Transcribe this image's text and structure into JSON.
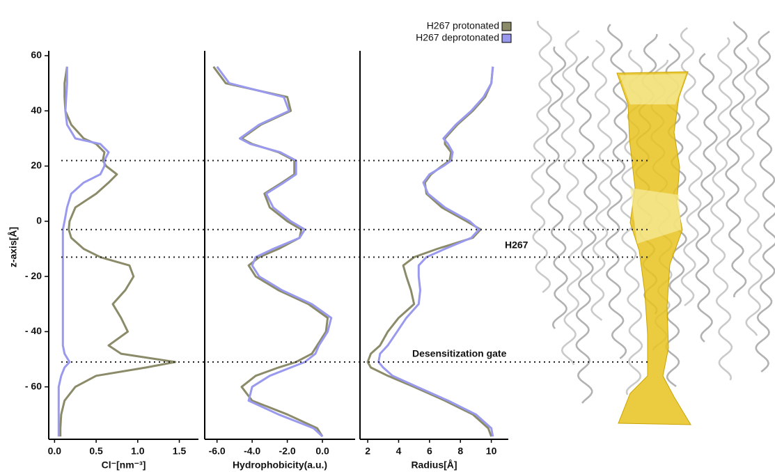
{
  "chart_data": [
    {
      "type": "line",
      "xlabel": "Cl⁻[nm⁻³]",
      "ylabel": "z-axis[Å]",
      "y": [
        56,
        50,
        45,
        40,
        35,
        30,
        28,
        25,
        22,
        20,
        17,
        14,
        10,
        5,
        0,
        -3,
        -6,
        -10,
        -13,
        -16,
        -20,
        -25,
        -30,
        -35,
        -40,
        -45,
        -48,
        -51,
        -53,
        -56,
        -60,
        -65,
        -70,
        -75,
        -78
      ],
      "ylim": [
        -79,
        61
      ],
      "yticks": [
        60,
        40,
        20,
        0,
        {
          "value": -20,
          "label": "- 20"
        },
        {
          "value": -40,
          "label": "- 40"
        },
        {
          "value": -60,
          "label": "- 60"
        }
      ],
      "xlim": [
        -0.07,
        1.73
      ],
      "xticks": [
        {
          "value": 0,
          "label": "0.0"
        },
        0.5,
        {
          "value": 1,
          "label": "1.0"
        },
        1.5
      ],
      "hlines": [
        22,
        -3,
        -13,
        -51
      ],
      "series": [
        {
          "color": "#8b8b6a",
          "values": [
            0.15,
            0.12,
            0.12,
            0.13,
            0.2,
            0.35,
            0.5,
            0.6,
            0.58,
            0.62,
            0.75,
            0.65,
            0.5,
            0.25,
            0.18,
            0.17,
            0.2,
            0.35,
            0.55,
            0.9,
            0.95,
            0.85,
            0.7,
            0.8,
            0.88,
            0.65,
            0.8,
            1.45,
            1.1,
            0.5,
            0.25,
            0.12,
            0.08,
            0.07,
            0.07
          ]
        },
        {
          "color": "#9999ee",
          "values": [
            0.15,
            0.15,
            0.14,
            0.13,
            0.15,
            0.25,
            0.55,
            0.65,
            0.6,
            0.6,
            0.55,
            0.35,
            0.2,
            0.15,
            0.12,
            0.1,
            0.1,
            0.1,
            0.1,
            0.1,
            0.1,
            0.1,
            0.1,
            0.1,
            0.1,
            0.1,
            0.12,
            0.18,
            0.12,
            0.08,
            0.05,
            0.05,
            0.05,
            0.05,
            0.05
          ]
        }
      ]
    },
    {
      "type": "line",
      "xlabel": "Hydrophobicity(a.u.)",
      "xlim": [
        -6.7,
        1.86
      ],
      "xticks": [
        {
          "value": -6,
          "label": "-6.0"
        },
        {
          "value": -4,
          "label": "-4.0"
        },
        {
          "value": -2,
          "label": "-2.0"
        },
        {
          "value": 0,
          "label": "0.0"
        }
      ],
      "series": [
        {
          "color": "#8b8b6a",
          "values": [
            -6.2,
            -5.5,
            -2.0,
            -1.8,
            -3.5,
            -4.6,
            -4.0,
            -2.5,
            -1.6,
            -1.6,
            -1.6,
            -2.3,
            -3.3,
            -3.0,
            -2.0,
            -1.2,
            -1.3,
            -2.5,
            -3.6,
            -4.2,
            -3.8,
            -2.5,
            -0.8,
            0.3,
            0.2,
            -0.3,
            -0.6,
            -1.5,
            -2.5,
            -3.8,
            -4.6,
            -4.0,
            -2.0,
            -0.3,
            0.0
          ]
        },
        {
          "color": "#9999ee",
          "values": [
            -6.0,
            -5.3,
            -2.2,
            -1.9,
            -3.6,
            -4.7,
            -4.1,
            -2.4,
            -1.5,
            -1.5,
            -1.5,
            -2.2,
            -3.2,
            -2.8,
            -1.8,
            -1.0,
            -1.3,
            -2.8,
            -3.8,
            -4.0,
            -3.6,
            -2.3,
            -0.6,
            0.5,
            0.3,
            -0.2,
            -0.4,
            -1.0,
            -1.8,
            -3.0,
            -4.0,
            -4.2,
            -2.5,
            -0.5,
            0.0
          ]
        }
      ]
    },
    {
      "type": "line",
      "xlabel": "Radius[Å]",
      "xlim": [
        1.5,
        11.1
      ],
      "xticks": [
        2,
        4,
        6,
        8,
        10
      ],
      "annotations": [
        "H267",
        "Desensitization gate"
      ],
      "series": [
        {
          "name": "H267 protonated",
          "color": "#8b8b6a",
          "values": [
            10.1,
            10.0,
            9.6,
            8.8,
            7.8,
            7.0,
            7.0,
            7.4,
            7.3,
            6.8,
            6.1,
            5.7,
            5.8,
            6.8,
            8.4,
            9.3,
            8.8,
            6.5,
            5.0,
            4.3,
            4.5,
            4.8,
            5.0,
            4.0,
            3.3,
            2.8,
            2.2,
            2.0,
            2.2,
            3.3,
            5.0,
            7.0,
            8.8,
            9.8,
            10.0
          ]
        },
        {
          "name": "H267 deprotonated",
          "color": "#9999ee",
          "values": [
            10.1,
            10.0,
            9.5,
            8.7,
            7.7,
            6.9,
            7.2,
            7.5,
            7.4,
            6.9,
            6.0,
            5.6,
            5.9,
            7.0,
            8.6,
            9.2,
            8.7,
            7.0,
            5.8,
            5.3,
            5.3,
            5.4,
            5.3,
            4.5,
            3.9,
            3.3,
            2.8,
            2.7,
            3.0,
            3.6,
            5.2,
            7.2,
            9.0,
            10.0,
            10.1
          ]
        }
      ]
    }
  ]
}
